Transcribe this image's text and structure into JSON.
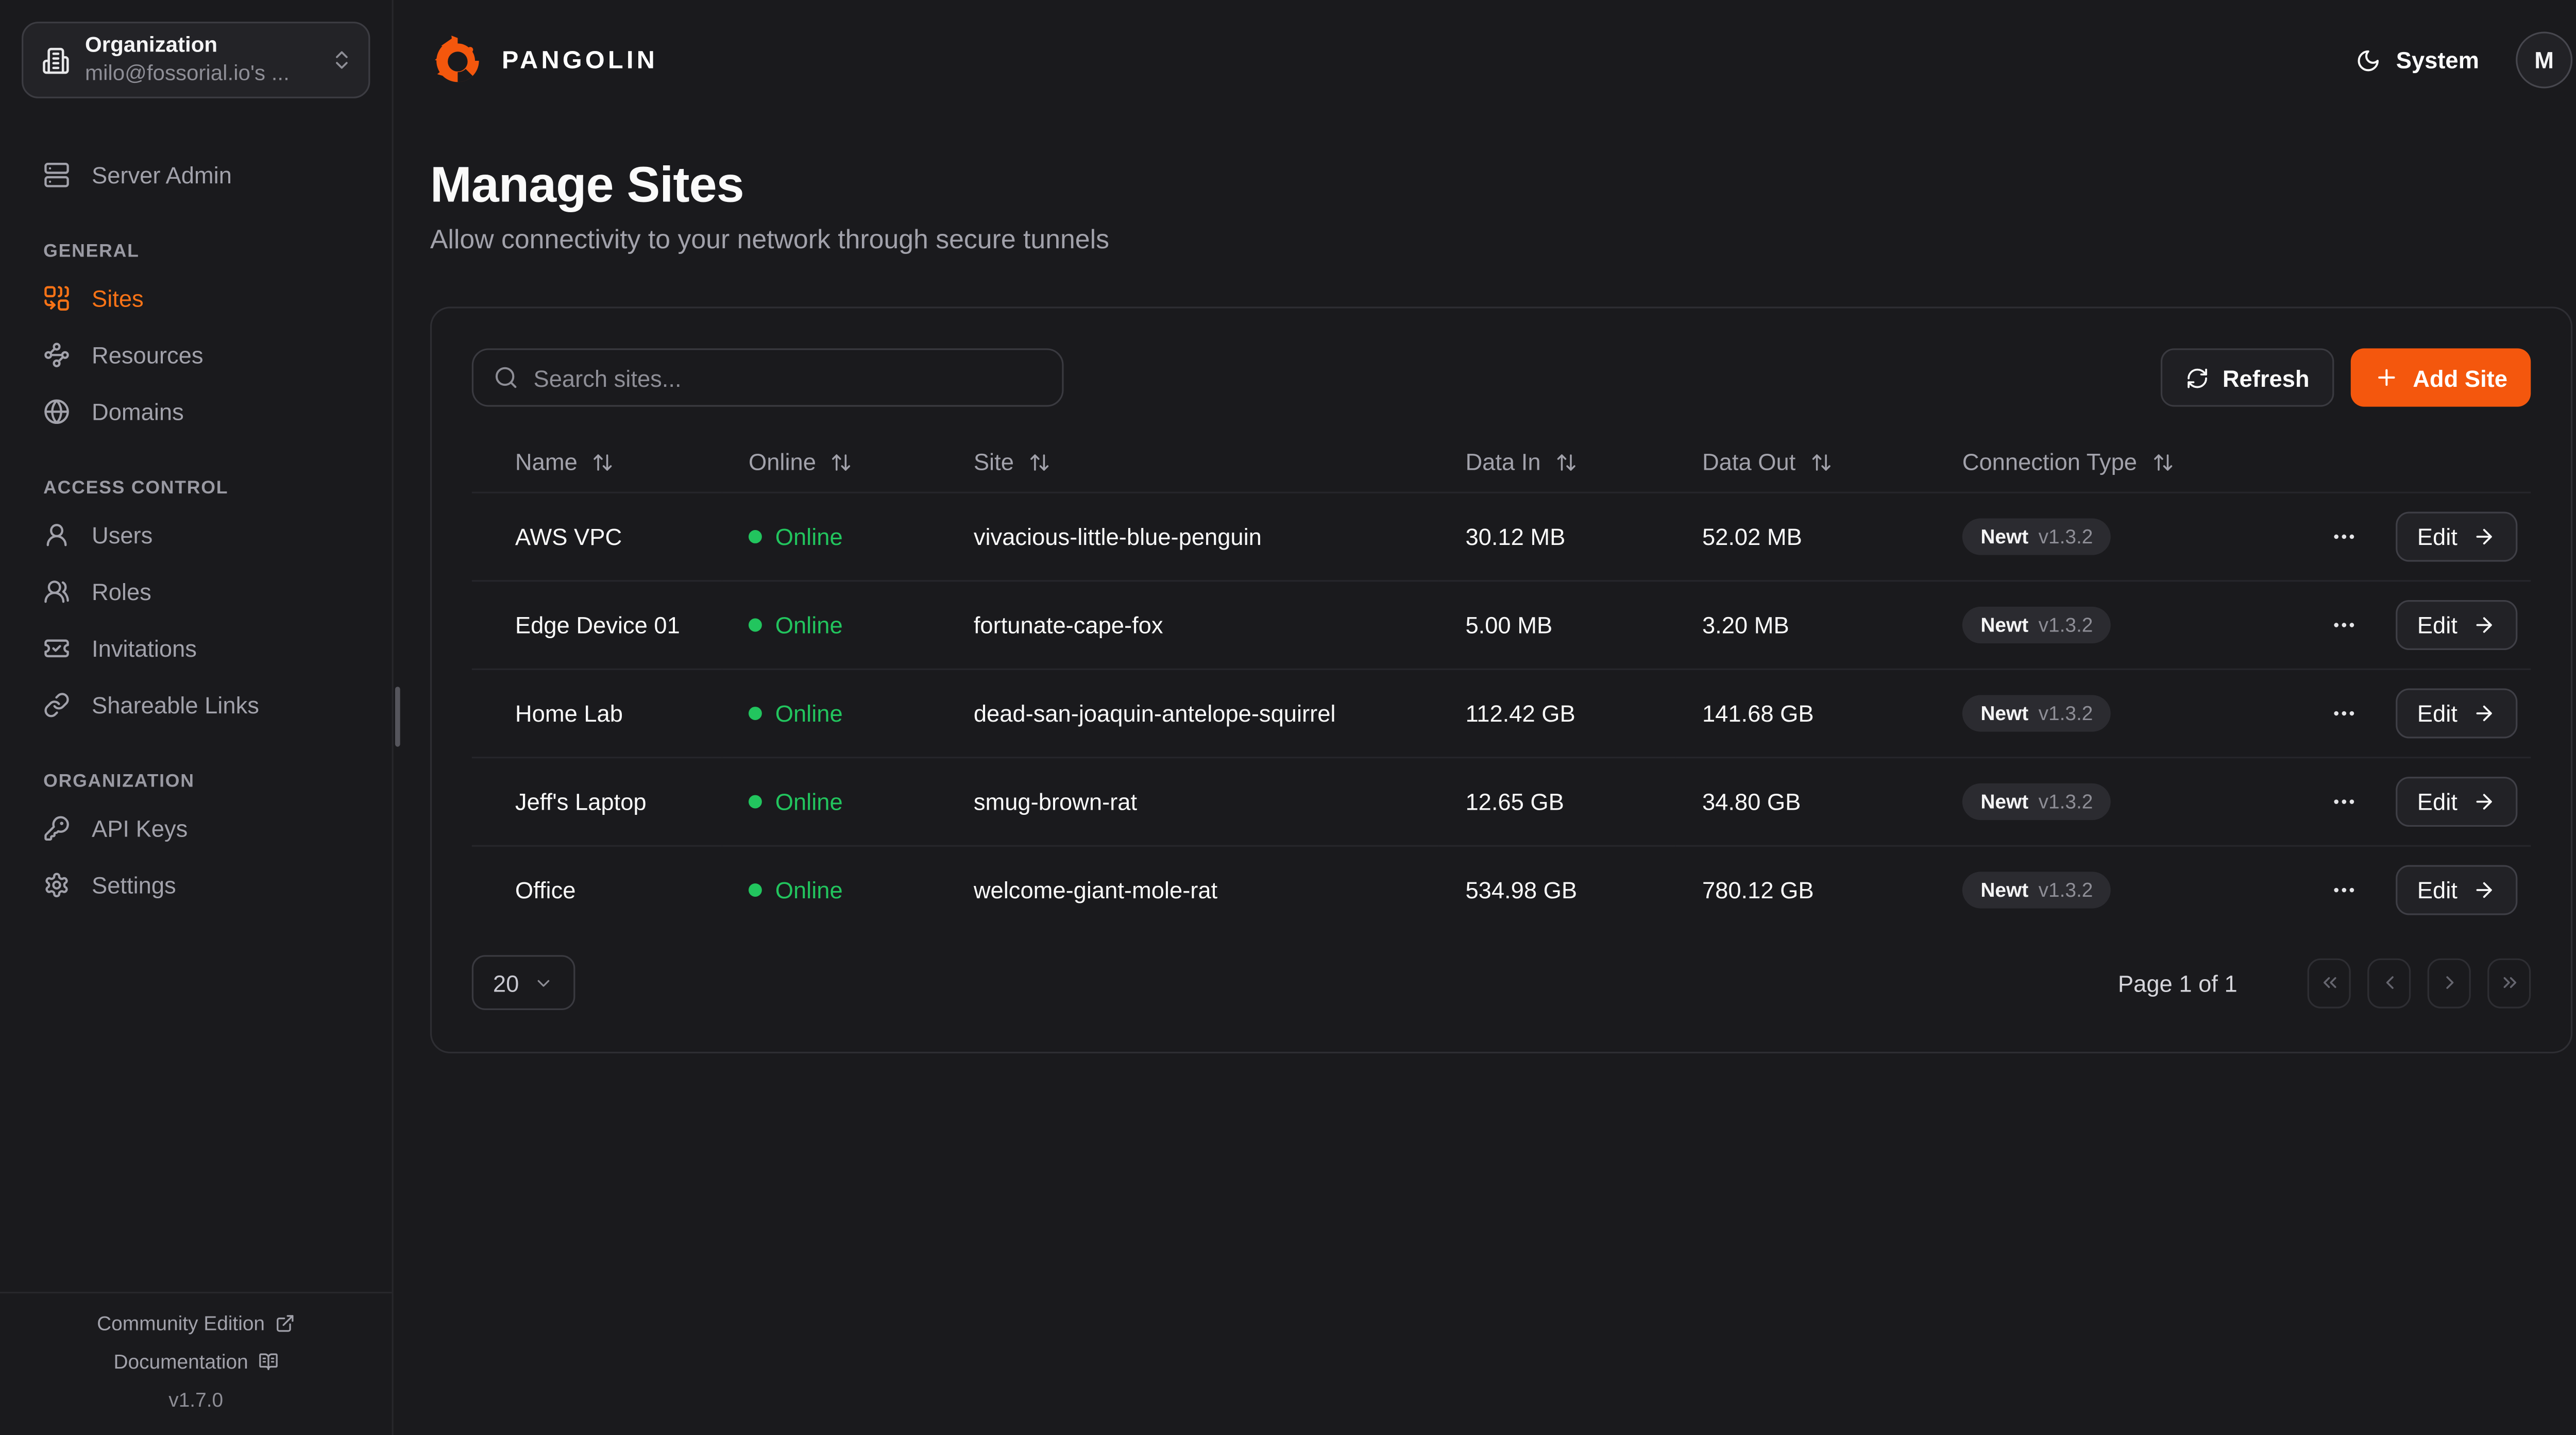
{
  "app": {
    "brand": "PANGOLIN"
  },
  "colors": {
    "accent_orange": "#F4570D",
    "active_nav_orange": "#F97316",
    "online_green": "#22C55E",
    "background": "#1A1A1D"
  },
  "org_switcher": {
    "label": "Organization",
    "value": "milo@fossorial.io's ...",
    "icon": "building-icon"
  },
  "topbar": {
    "theme_label": "System",
    "theme_icon": "moon-icon",
    "avatar_initial": "M"
  },
  "sidebar": {
    "admin_item": {
      "label": "Server Admin",
      "icon": "server"
    },
    "sections": [
      {
        "title": "GENERAL",
        "items": [
          {
            "label": "Sites",
            "icon": "combine",
            "active": true
          },
          {
            "label": "Resources",
            "icon": "waypoints",
            "active": false
          },
          {
            "label": "Domains",
            "icon": "globe",
            "active": false
          }
        ]
      },
      {
        "title": "ACCESS CONTROL",
        "items": [
          {
            "label": "Users",
            "icon": "user-round",
            "active": false
          },
          {
            "label": "Roles",
            "icon": "users-round",
            "active": false
          },
          {
            "label": "Invitations",
            "icon": "ticket-check",
            "active": false
          },
          {
            "label": "Shareable Links",
            "icon": "link",
            "active": false
          }
        ]
      },
      {
        "title": "ORGANIZATION",
        "items": [
          {
            "label": "API Keys",
            "icon": "key-round",
            "active": false
          },
          {
            "label": "Settings",
            "icon": "settings",
            "active": false
          }
        ]
      }
    ],
    "footer": {
      "community_label": "Community Edition",
      "community_icon": "external-link-icon",
      "docs_label": "Documentation",
      "docs_icon": "book-open-icon",
      "version": "v1.7.0"
    }
  },
  "page": {
    "title": "Manage Sites",
    "subtitle": "Allow connectivity to your network through secure tunnels"
  },
  "toolbar": {
    "search_placeholder": "Search sites...",
    "search_icon": "search-icon",
    "refresh_label": "Refresh",
    "refresh_icon": "refresh-icon",
    "add_site_label": "Add Site",
    "add_icon": "plus-icon"
  },
  "table": {
    "columns": [
      {
        "label": "Name",
        "sortable": true
      },
      {
        "label": "Online",
        "sortable": true
      },
      {
        "label": "Site",
        "sortable": true
      },
      {
        "label": "Data In",
        "sortable": true
      },
      {
        "label": "Data Out",
        "sortable": true
      },
      {
        "label": "Connection Type",
        "sortable": true
      }
    ],
    "sort_icon": "arrow-up-down-icon",
    "rows": [
      {
        "name": "AWS VPC",
        "status": "Online",
        "site": "vivacious-little-blue-penguin",
        "data_in": "30.12 MB",
        "data_out": "52.02 MB",
        "connection": {
          "type": "Newt",
          "version": "v1.3.2"
        }
      },
      {
        "name": "Edge Device 01",
        "status": "Online",
        "site": "fortunate-cape-fox",
        "data_in": "5.00 MB",
        "data_out": "3.20 MB",
        "connection": {
          "type": "Newt",
          "version": "v1.3.2"
        }
      },
      {
        "name": "Home Lab",
        "status": "Online",
        "site": "dead-san-joaquin-antelope-squirrel",
        "data_in": "112.42 GB",
        "data_out": "141.68 GB",
        "connection": {
          "type": "Newt",
          "version": "v1.3.2"
        }
      },
      {
        "name": "Jeff's Laptop",
        "status": "Online",
        "site": "smug-brown-rat",
        "data_in": "12.65 GB",
        "data_out": "34.80 GB",
        "connection": {
          "type": "Newt",
          "version": "v1.3.2"
        }
      },
      {
        "name": "Office",
        "status": "Online",
        "site": "welcome-giant-mole-rat",
        "data_in": "534.98 GB",
        "data_out": "780.12 GB",
        "connection": {
          "type": "Newt",
          "version": "v1.3.2"
        }
      }
    ],
    "actions": {
      "more_icon": "ellipsis-icon",
      "edit_label": "Edit",
      "edit_icon": "arrow-right-icon"
    }
  },
  "pagination": {
    "page_size": "20",
    "info": "Page 1 of 1",
    "buttons": [
      "first-page",
      "previous-page",
      "next-page",
      "last-page"
    ]
  }
}
